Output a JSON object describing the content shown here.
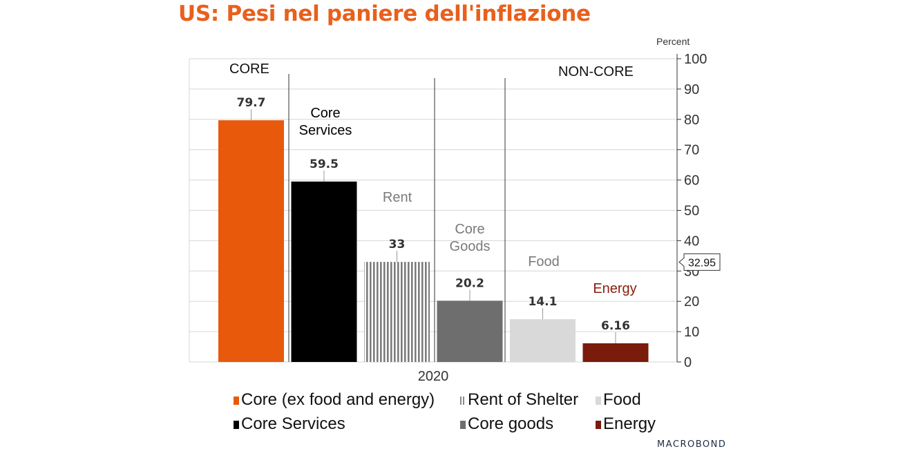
{
  "title": "US: Pesi nel paniere dell'inflazione",
  "brand": "MACROBOND",
  "chart_data": {
    "type": "bar",
    "categories": [
      "2020"
    ],
    "series": [
      {
        "name": "Core (ex food and energy)",
        "values": [
          79.7
        ],
        "color": "#e8590c",
        "label": "79.7"
      },
      {
        "name": "Core Services",
        "values": [
          59.5
        ],
        "color": "#000000",
        "label": "59.5"
      },
      {
        "name": "Rent of Shelter",
        "values": [
          33
        ],
        "color": "#888888",
        "pattern": "vertical-stripes",
        "label": "33"
      },
      {
        "name": "Core goods",
        "values": [
          20.2
        ],
        "color": "#6e6e6e",
        "label": "20.2"
      },
      {
        "name": "Food",
        "values": [
          14.1
        ],
        "color": "#d9d9d9",
        "label": "14.1"
      },
      {
        "name": "Energy",
        "values": [
          6.16
        ],
        "color": "#7a1b0c",
        "label": "6.16"
      }
    ],
    "bar_annotations": [
      {
        "text": "Core\nServices",
        "color": "#000000"
      },
      {
        "text": "Rent",
        "color": "#7a7a7a"
      },
      {
        "text": "Core\nGoods",
        "color": "#7a7a7a"
      },
      {
        "text": "Food",
        "color": "#7a7a7a"
      },
      {
        "text": "Energy",
        "color": "#8a1c0c"
      }
    ],
    "section_labels": [
      "CORE",
      "NON-CORE"
    ],
    "y_unit": "Percent",
    "ylim": [
      0,
      100
    ],
    "yticks": [
      0,
      10,
      20,
      30,
      40,
      50,
      60,
      70,
      80,
      90,
      100
    ],
    "y_axis_position": "right",
    "last_value_callout": "32.95",
    "grid": true,
    "legend_position": "bottom"
  },
  "legend": {
    "rows": [
      [
        "Core (ex food and energy)",
        "Rent of Shelter",
        "Food"
      ],
      [
        "Core Services",
        "Core goods",
        "Energy"
      ]
    ]
  }
}
